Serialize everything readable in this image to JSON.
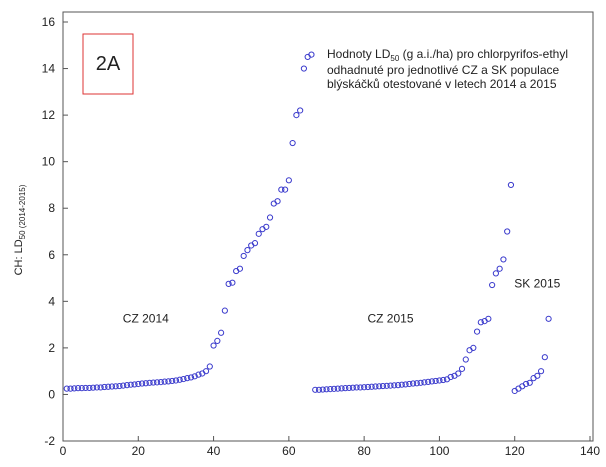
{
  "chart_data": {
    "type": "scatter",
    "box_label": "2A",
    "annotation": {
      "line1_before": "Hodnoty LD",
      "line1_sub": "50",
      "line1_after": " (g a.i./ha) pro chlorpyrifos-ethyl",
      "line2": "odhadnuté pro jednotlivé CZ a SK populace",
      "line3": "blýskáčků otestované v letech 2014 a 2015"
    },
    "y_label": "CH: LD",
    "y_label_sub": "50 (2014-2015)",
    "group_labels": [
      {
        "text": "CZ 2014",
        "x": 22,
        "y": 3.1
      },
      {
        "text": "CZ 2015",
        "x": 87,
        "y": 3.1
      },
      {
        "text": "SK 2015",
        "x": 126,
        "y": 4.6
      }
    ],
    "color": "#3a3acc",
    "x": [
      1,
      2,
      3,
      4,
      5,
      6,
      7,
      8,
      9,
      10,
      11,
      12,
      13,
      14,
      15,
      16,
      17,
      18,
      19,
      20,
      21,
      22,
      23,
      24,
      25,
      26,
      27,
      28,
      29,
      30,
      31,
      32,
      33,
      34,
      35,
      36,
      37,
      38,
      39,
      40,
      41,
      42,
      43,
      44,
      45,
      46,
      47,
      48,
      49,
      50,
      51,
      52,
      53,
      54,
      55,
      56,
      57,
      58,
      59,
      60,
      61,
      62,
      63,
      64,
      65,
      66,
      67,
      68,
      69,
      70,
      71,
      72,
      73,
      74,
      75,
      76,
      77,
      78,
      79,
      80,
      81,
      82,
      83,
      84,
      85,
      86,
      87,
      88,
      89,
      90,
      91,
      92,
      93,
      94,
      95,
      96,
      97,
      98,
      99,
      100,
      101,
      102,
      103,
      104,
      105,
      106,
      107,
      108,
      109,
      110,
      111,
      112,
      113,
      114,
      115,
      116,
      117,
      118,
      119,
      120,
      121,
      122,
      123,
      124,
      125,
      126,
      127,
      128,
      129
    ],
    "values": [
      0.25,
      0.25,
      0.26,
      0.27,
      0.27,
      0.28,
      0.28,
      0.29,
      0.3,
      0.3,
      0.32,
      0.33,
      0.34,
      0.35,
      0.36,
      0.38,
      0.4,
      0.42,
      0.43,
      0.45,
      0.47,
      0.48,
      0.5,
      0.51,
      0.52,
      0.53,
      0.55,
      0.56,
      0.58,
      0.6,
      0.63,
      0.66,
      0.7,
      0.73,
      0.78,
      0.85,
      0.9,
      1.0,
      1.2,
      2.1,
      2.3,
      2.65,
      3.6,
      4.75,
      4.8,
      5.3,
      5.4,
      5.95,
      6.2,
      6.4,
      6.5,
      6.9,
      7.1,
      7.2,
      7.6,
      8.2,
      8.3,
      8.8,
      8.8,
      9.2,
      10.8,
      12.0,
      12.2,
      14.0,
      14.5,
      14.6,
      0.2,
      0.2,
      0.21,
      0.22,
      0.23,
      0.24,
      0.25,
      0.26,
      0.27,
      0.28,
      0.29,
      0.3,
      0.3,
      0.31,
      0.32,
      0.33,
      0.34,
      0.35,
      0.36,
      0.37,
      0.38,
      0.39,
      0.4,
      0.42,
      0.43,
      0.45,
      0.47,
      0.48,
      0.5,
      0.52,
      0.54,
      0.56,
      0.58,
      0.6,
      0.62,
      0.65,
      0.75,
      0.8,
      0.9,
      1.1,
      1.5,
      1.9,
      2.0,
      2.7,
      3.1,
      3.15,
      3.25,
      4.7,
      5.2,
      5.4,
      5.8,
      7.0,
      9.0,
      0.15,
      0.25,
      0.35,
      0.45,
      0.5,
      0.7,
      0.8,
      1.0,
      1.6,
      3.25
    ],
    "xlim": [
      0,
      140
    ],
    "xticks": [
      0,
      20,
      40,
      60,
      80,
      100,
      120,
      140
    ],
    "ylim": [
      -2,
      16
    ],
    "yticks": [
      -2,
      0,
      2,
      4,
      6,
      8,
      10,
      12,
      14,
      16
    ]
  }
}
